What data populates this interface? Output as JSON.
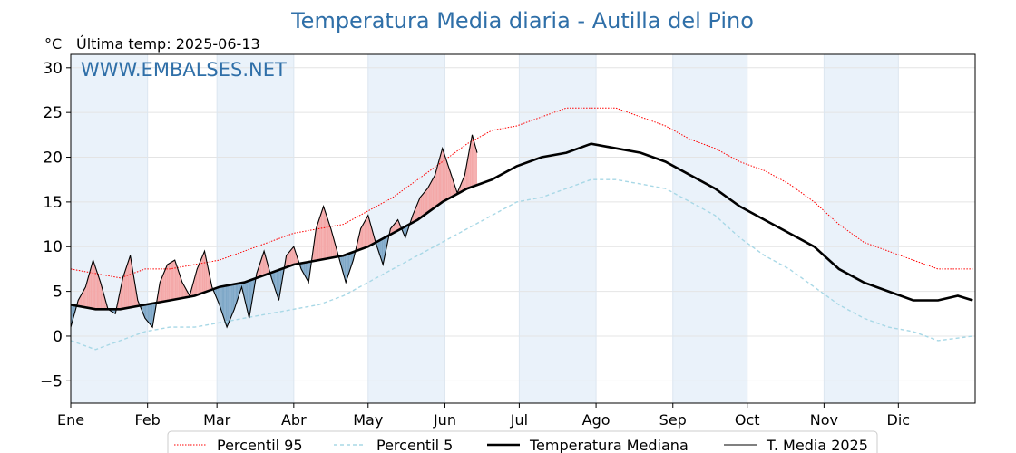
{
  "chart_data": {
    "type": "line",
    "title": "Temperatura Media diaria - Autilla del Pino",
    "unit_label": "°C",
    "subtitle": "Última temp: 2025-06-13",
    "watermark": "WWW.EMBALSES.NET",
    "ylim": [
      -7.5,
      31.5
    ],
    "yticks": [
      -5,
      0,
      5,
      10,
      15,
      20,
      25,
      30
    ],
    "ytick_labels": [
      "−5",
      "0",
      "5",
      "10",
      "15",
      "20",
      "25",
      "30"
    ],
    "month_labels": [
      "Ene",
      "Feb",
      "Mar",
      "Abr",
      "May",
      "Jun",
      "Jul",
      "Ago",
      "Sep",
      "Oct",
      "Nov",
      "Dic"
    ],
    "month_start_days": [
      0,
      31,
      59,
      90,
      120,
      151,
      181,
      212,
      243,
      273,
      304,
      334
    ],
    "days_in_year": 365,
    "grid": true,
    "legend_position": "bottom",
    "colors": {
      "p95": "#ff0000",
      "p5": "#a8d8e6",
      "median": "#000000",
      "current": "#000000",
      "above_fill": "#f4a8a8",
      "below_fill": "#7fa8c8",
      "band": "#eaf2fa",
      "title": "#2f6fa8"
    },
    "series": [
      {
        "name": "Percentil 95",
        "style": "dotted",
        "x": [
          0,
          10,
          20,
          30,
          40,
          50,
          60,
          70,
          80,
          90,
          100,
          110,
          120,
          130,
          140,
          150,
          160,
          170,
          180,
          190,
          200,
          210,
          220,
          230,
          240,
          250,
          260,
          270,
          280,
          290,
          300,
          310,
          320,
          330,
          340,
          350,
          364
        ],
        "values": [
          7.5,
          7.0,
          6.5,
          7.5,
          7.5,
          8.0,
          8.5,
          9.5,
          10.5,
          11.5,
          12.0,
          12.5,
          14.0,
          15.5,
          17.5,
          19.5,
          21.5,
          23.0,
          23.5,
          24.5,
          25.5,
          25.5,
          25.5,
          24.5,
          23.5,
          22.0,
          21.0,
          19.5,
          18.5,
          17.0,
          15.0,
          12.5,
          10.5,
          9.5,
          8.5,
          7.5,
          7.5
        ]
      },
      {
        "name": "Percentil 5",
        "style": "dashed",
        "x": [
          0,
          10,
          20,
          30,
          40,
          50,
          60,
          70,
          80,
          90,
          100,
          110,
          120,
          130,
          140,
          150,
          160,
          170,
          180,
          190,
          200,
          210,
          220,
          230,
          240,
          250,
          260,
          270,
          280,
          290,
          300,
          310,
          320,
          330,
          340,
          350,
          364
        ],
        "values": [
          -0.5,
          -1.5,
          -0.5,
          0.5,
          1.0,
          1.0,
          1.5,
          2.0,
          2.5,
          3.0,
          3.5,
          4.5,
          6.0,
          7.5,
          9.0,
          10.5,
          12.0,
          13.5,
          15.0,
          15.5,
          16.5,
          17.5,
          17.5,
          17.0,
          16.5,
          15.0,
          13.5,
          11.0,
          9.0,
          7.5,
          5.5,
          3.5,
          2.0,
          1.0,
          0.5,
          -0.5,
          0.0
        ]
      },
      {
        "name": "Temperatura Mediana",
        "style": "thick",
        "x": [
          0,
          10,
          20,
          30,
          40,
          50,
          60,
          70,
          80,
          90,
          100,
          110,
          120,
          130,
          140,
          150,
          160,
          170,
          180,
          190,
          200,
          210,
          220,
          230,
          240,
          250,
          260,
          270,
          280,
          290,
          300,
          310,
          320,
          330,
          340,
          350,
          358,
          364
        ],
        "values": [
          3.5,
          3.0,
          3.0,
          3.5,
          4.0,
          4.5,
          5.5,
          6.0,
          7.0,
          8.0,
          8.5,
          9.0,
          10.0,
          11.5,
          13.0,
          15.0,
          16.5,
          17.5,
          19.0,
          20.0,
          20.5,
          21.5,
          21.0,
          20.5,
          19.5,
          18.0,
          16.5,
          14.5,
          13.0,
          11.5,
          10.0,
          7.5,
          6.0,
          5.0,
          4.0,
          4.0,
          4.5,
          4.0
        ]
      },
      {
        "name": "T. Media 2025",
        "style": "thin",
        "x": [
          0,
          3,
          6,
          9,
          12,
          15,
          18,
          21,
          24,
          27,
          30,
          33,
          36,
          39,
          42,
          45,
          48,
          51,
          54,
          57,
          60,
          63,
          66,
          69,
          72,
          75,
          78,
          81,
          84,
          87,
          90,
          93,
          96,
          99,
          102,
          105,
          108,
          111,
          114,
          117,
          120,
          123,
          126,
          129,
          132,
          135,
          138,
          141,
          144,
          147,
          150,
          153,
          156,
          159,
          162,
          164
        ],
        "values": [
          1.0,
          4.0,
          5.5,
          8.5,
          6.0,
          3.0,
          2.5,
          6.5,
          9.0,
          4.0,
          2.0,
          1.0,
          6.0,
          8.0,
          8.5,
          6.0,
          4.5,
          7.5,
          9.5,
          5.5,
          3.5,
          1.0,
          3.0,
          5.5,
          2.0,
          7.0,
          9.5,
          6.5,
          4.0,
          9.0,
          10.0,
          7.5,
          6.0,
          12.0,
          14.5,
          12.0,
          9.0,
          6.0,
          8.5,
          12.0,
          13.5,
          10.5,
          8.0,
          12.0,
          13.0,
          11.0,
          13.5,
          15.5,
          16.5,
          18.0,
          21.0,
          18.5,
          16.0,
          18.0,
          22.5,
          20.5
        ]
      }
    ],
    "legend": [
      "Percentil 95",
      "Percentil 5",
      "Temperatura Mediana",
      "T. Media 2025"
    ]
  }
}
